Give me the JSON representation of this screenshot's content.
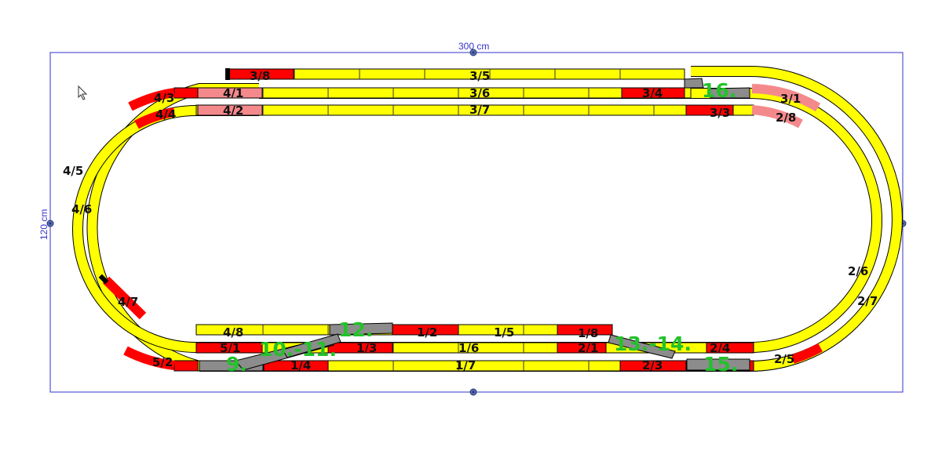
{
  "dimensions": {
    "width": "300 cm",
    "height": "120 cm"
  },
  "colors": {
    "track": "#ffff00",
    "stop_section": "#ff0000",
    "brake_section": "#f4898c",
    "turnout": "#8c8c8c",
    "step_label": "#22c22a",
    "frame": "#3333cc"
  },
  "segments": [
    "3/8",
    "3/5",
    "4/1",
    "3/6",
    "3/4",
    "4/3",
    "4/4",
    "4/2",
    "3/7",
    "3/3",
    "3/1",
    "2/8",
    "4/5",
    "4/6",
    "2/6",
    "2/7",
    "4/7",
    "4/8",
    "1/2",
    "1/5",
    "1/8",
    "5/1",
    "1/3",
    "1/6",
    "2/1",
    "2/4",
    "5/2",
    "1/4",
    "1/7",
    "2/3",
    "2/5"
  ],
  "steps": [
    "16.",
    "12.",
    "10.-11.",
    "13.-14.",
    "9.",
    "15."
  ],
  "icons": {
    "cursor": "mouse-pointer-icon",
    "handles": "resize-handle-icon"
  }
}
